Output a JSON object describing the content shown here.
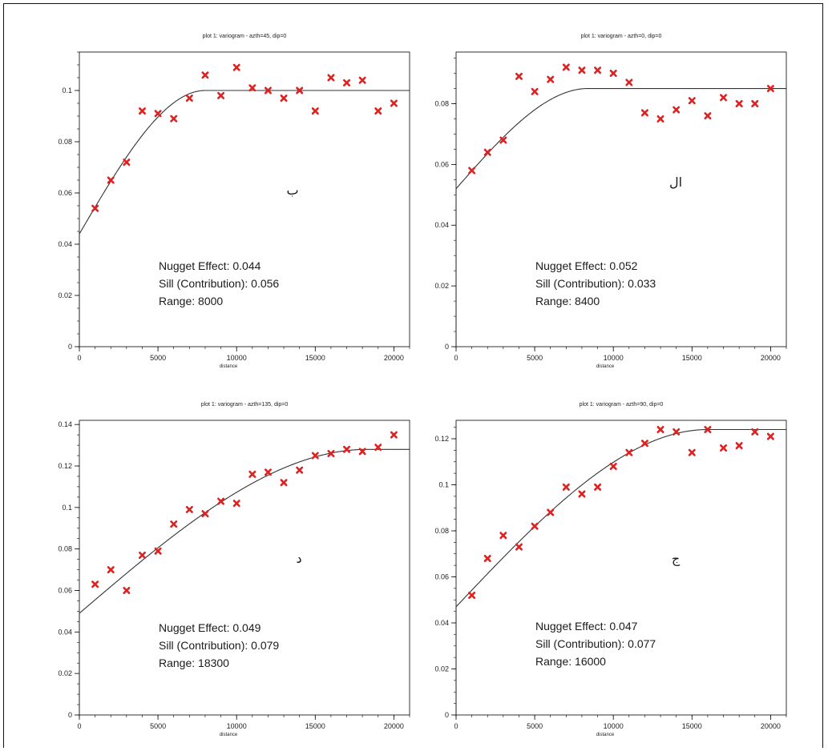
{
  "chart_data": [
    {
      "type": "scatter",
      "title": "plot 1:  variogram - azth=45, dip=0",
      "xlabel": "distance",
      "ylabel": "",
      "xlim": [
        0,
        21000
      ],
      "ylim": [
        0,
        0.115
      ],
      "xticks": [
        0,
        5000,
        10000,
        15000,
        20000
      ],
      "xtick_labels": [
        "0",
        "5000",
        "10000",
        "15000",
        "20000"
      ],
      "yticks": [
        0,
        0.02,
        0.04,
        0.06,
        0.08,
        0.1
      ],
      "ytick_labels": [
        "0",
        "0.02",
        "0.04",
        "0.06",
        "0.08",
        "0.1"
      ],
      "panel_label": "ب",
      "x": [
        1000,
        2000,
        3000,
        4000,
        5000,
        6000,
        7000,
        8000,
        9000,
        10000,
        11000,
        12000,
        13000,
        14000,
        15000,
        16000,
        17000,
        18000,
        19000,
        20000
      ],
      "y": [
        0.054,
        0.065,
        0.072,
        0.092,
        0.091,
        0.089,
        0.097,
        0.106,
        0.098,
        0.109,
        0.101,
        0.1,
        0.097,
        0.1,
        0.092,
        0.105,
        0.103,
        0.104,
        0.092,
        0.095
      ],
      "model": {
        "nugget": 0.044,
        "sill": 0.056,
        "range": 8000,
        "xmax": 21000
      },
      "annotation": [
        "Nugget Effect: 0.044",
        "Sill (Contribution):  0.056",
        "Range: 8000"
      ]
    },
    {
      "type": "scatter",
      "title": "plot 1:  variogram - azth=0, dip=0",
      "xlabel": "distance",
      "ylabel": "",
      "xlim": [
        0,
        21000
      ],
      "ylim": [
        0,
        0.097
      ],
      "xticks": [
        0,
        5000,
        10000,
        15000,
        20000
      ],
      "xtick_labels": [
        "0",
        "5000",
        "10000",
        "15000",
        "20000"
      ],
      "yticks": [
        0,
        0.02,
        0.04,
        0.06,
        0.08
      ],
      "ytick_labels": [
        "0",
        "0.02",
        "0.04",
        "0.06",
        "0.08"
      ],
      "panel_label": "ال",
      "x": [
        1000,
        2000,
        3000,
        4000,
        5000,
        6000,
        7000,
        8000,
        9000,
        10000,
        11000,
        12000,
        13000,
        14000,
        15000,
        16000,
        17000,
        18000,
        19000,
        20000
      ],
      "y": [
        0.058,
        0.064,
        0.068,
        0.089,
        0.084,
        0.088,
        0.092,
        0.091,
        0.091,
        0.09,
        0.087,
        0.077,
        0.075,
        0.078,
        0.081,
        0.076,
        0.082,
        0.08,
        0.08,
        0.085
      ],
      "model": {
        "nugget": 0.052,
        "sill": 0.033,
        "range": 8400,
        "xmax": 21000
      },
      "annotation": [
        "Nugget Effect: 0.052",
        "Sill (Contribution): 0.033",
        "Range: 8400"
      ]
    },
    {
      "type": "scatter",
      "title": "plot 1:  variogram - azth=135, dip=0",
      "xlabel": "distance",
      "ylabel": "",
      "xlim": [
        0,
        21000
      ],
      "ylim": [
        0,
        0.142
      ],
      "xticks": [
        0,
        5000,
        10000,
        15000,
        20000
      ],
      "xtick_labels": [
        "0",
        "5000",
        "10000",
        "15000",
        "20000"
      ],
      "yticks": [
        0,
        0.02,
        0.04,
        0.06,
        0.08,
        0.1,
        0.12,
        0.14
      ],
      "ytick_labels": [
        "0",
        "0.02",
        "0.04",
        "0.06",
        "0.08",
        "0.1",
        "0.12",
        "0.14"
      ],
      "panel_label": "د",
      "x": [
        1000,
        2000,
        3000,
        4000,
        5000,
        6000,
        7000,
        8000,
        9000,
        10000,
        11000,
        12000,
        13000,
        14000,
        15000,
        16000,
        17000,
        18000,
        19000,
        20000
      ],
      "y": [
        0.063,
        0.07,
        0.06,
        0.077,
        0.079,
        0.092,
        0.099,
        0.097,
        0.103,
        0.102,
        0.116,
        0.117,
        0.112,
        0.118,
        0.125,
        0.126,
        0.128,
        0.127,
        0.129,
        0.135
      ],
      "model": {
        "nugget": 0.049,
        "sill": 0.079,
        "range": 18300,
        "xmax": 21000
      },
      "annotation": [
        "Nugget Effect: 0.049",
        "Sill (Contribution):  0.079",
        "Range: 18300"
      ]
    },
    {
      "type": "scatter",
      "title": "plot 1:  variogram - azth=90, dip=0",
      "xlabel": "distance",
      "ylabel": "",
      "xlim": [
        0,
        21000
      ],
      "ylim": [
        0,
        0.128
      ],
      "xticks": [
        0,
        5000,
        10000,
        15000,
        20000
      ],
      "xtick_labels": [
        "0",
        "5000",
        "10000",
        "15000",
        "20000"
      ],
      "yticks": [
        0,
        0.02,
        0.04,
        0.06,
        0.08,
        0.1,
        0.12
      ],
      "ytick_labels": [
        "0",
        "0.02",
        "0.04",
        "0.06",
        "0.08",
        "0.1",
        "0.12"
      ],
      "panel_label": "ج",
      "x": [
        1000,
        2000,
        3000,
        4000,
        5000,
        6000,
        7000,
        8000,
        9000,
        10000,
        11000,
        12000,
        13000,
        14000,
        15000,
        16000,
        17000,
        18000,
        19000,
        20000
      ],
      "y": [
        0.052,
        0.068,
        0.078,
        0.073,
        0.082,
        0.088,
        0.099,
        0.096,
        0.099,
        0.108,
        0.114,
        0.118,
        0.124,
        0.123,
        0.114,
        0.124,
        0.116,
        0.117,
        0.123,
        0.121
      ],
      "model": {
        "nugget": 0.047,
        "sill": 0.077,
        "range": 16000,
        "xmax": 21000
      },
      "annotation": [
        "Nugget Effect: 0.047",
        "Sill (Contribution): 0.077",
        "Range: 16000"
      ]
    }
  ],
  "colors": {
    "points": "#dd2222",
    "model_line": "#333333",
    "axes": "#000000",
    "frame": "#111111"
  }
}
